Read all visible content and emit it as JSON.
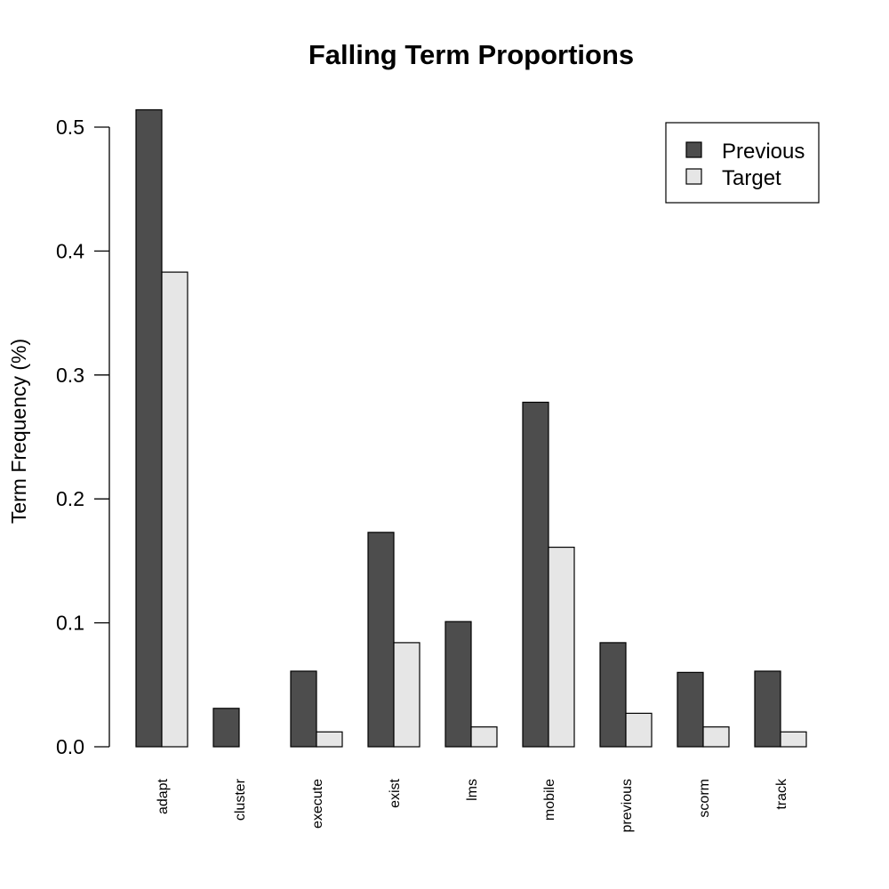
{
  "chart_data": {
    "type": "bar",
    "title": "Falling Term Proportions",
    "xlabel": "",
    "ylabel": "Term Frequency (%)",
    "categories": [
      "adapt",
      "cluster",
      "execute",
      "exist",
      "lms",
      "mobile",
      "previous",
      "scorm",
      "track"
    ],
    "series": [
      {
        "name": "Previous",
        "color": "#4d4d4d",
        "values": [
          0.514,
          0.031,
          0.061,
          0.173,
          0.101,
          0.278,
          0.084,
          0.06,
          0.061
        ]
      },
      {
        "name": "Target",
        "color": "#e6e6e6",
        "values": [
          0.383,
          0.0,
          0.012,
          0.084,
          0.016,
          0.161,
          0.027,
          0.016,
          0.012
        ]
      }
    ],
    "ylim": [
      0,
      0.5
    ],
    "yticks": [
      "0.0",
      "0.1",
      "0.2",
      "0.3",
      "0.4",
      "0.5"
    ],
    "grid": false,
    "legend_position": "top-right"
  }
}
